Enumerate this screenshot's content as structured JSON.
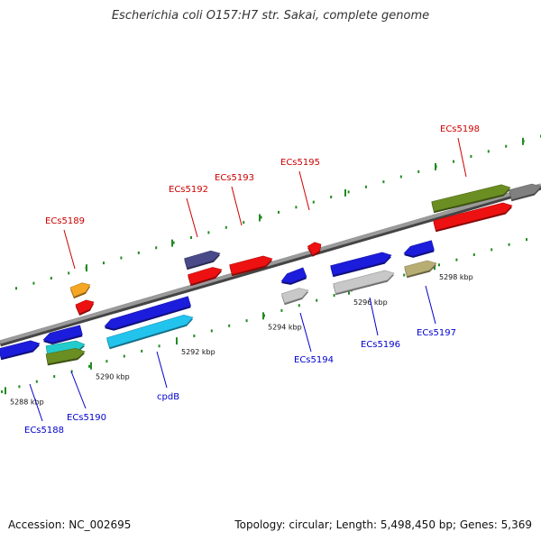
{
  "title": "Escherichia coli O157:H7 str. Sakai, complete genome",
  "footer": {
    "accession": "Accession: NC_002695",
    "summary": "Topology: circular; Length: 5,498,450 bp; Genes: 5,369"
  },
  "colors": {
    "forward_label": "#cc0000",
    "reverse_label": "#0000cc",
    "backbone": "#7a7a7a",
    "tick": "#228b22"
  },
  "ticks": [
    {
      "kbp": 5288,
      "label": "5288 kbp"
    },
    {
      "kbp": 5290,
      "label": "5290 kbp"
    },
    {
      "kbp": 5292,
      "label": "5292 kbp"
    },
    {
      "kbp": 5294,
      "label": "5294 kbp"
    },
    {
      "kbp": 5296,
      "label": "5296 kbp"
    },
    {
      "kbp": 5298,
      "label": "5298 kbp"
    }
  ],
  "genes": [
    {
      "name": "ECs5188",
      "strand": "reverse",
      "color": "#1c1cdc"
    },
    {
      "name": "",
      "strand": "reverse",
      "color": "#1c1cdc"
    },
    {
      "name": "ECs5189",
      "strand": "forward",
      "color": "#f5a623"
    },
    {
      "name": "",
      "strand": "forward",
      "color": "#ee1111"
    },
    {
      "name": "ECs5190",
      "strand": "reverse",
      "color": "#22cccc"
    },
    {
      "name": "",
      "strand": "reverse",
      "color": "#6b8e23"
    },
    {
      "name": "cpdB",
      "strand": "reverse",
      "color": "#1c1cdc"
    },
    {
      "name": "",
      "strand": "reverse",
      "color": "#22c4ee"
    },
    {
      "name": "ECs5192",
      "strand": "forward",
      "color": "#4a4a8a"
    },
    {
      "name": "",
      "strand": "forward",
      "color": "#ee1111"
    },
    {
      "name": "ECs5193",
      "strand": "forward",
      "color": "#ee1111"
    },
    {
      "name": "ECs5194",
      "strand": "reverse",
      "color": "#1c1cdc"
    },
    {
      "name": "",
      "strand": "reverse",
      "color": "#c8c8c8"
    },
    {
      "name": "ECs5195",
      "strand": "forward",
      "color": "#ee1111"
    },
    {
      "name": "ECs5196",
      "strand": "reverse",
      "color": "#1c1cdc"
    },
    {
      "name": "",
      "strand": "reverse",
      "color": "#c8c8c8"
    },
    {
      "name": "ECs5197",
      "strand": "reverse",
      "color": "#1c1cdc"
    },
    {
      "name": "",
      "strand": "reverse",
      "color": "#b8ae74"
    },
    {
      "name": "ECs5198",
      "strand": "forward",
      "color": "#6b8e23"
    },
    {
      "name": "",
      "strand": "forward",
      "color": "#ee1111"
    },
    {
      "name": "",
      "strand": "forward",
      "color": "#808080"
    }
  ]
}
